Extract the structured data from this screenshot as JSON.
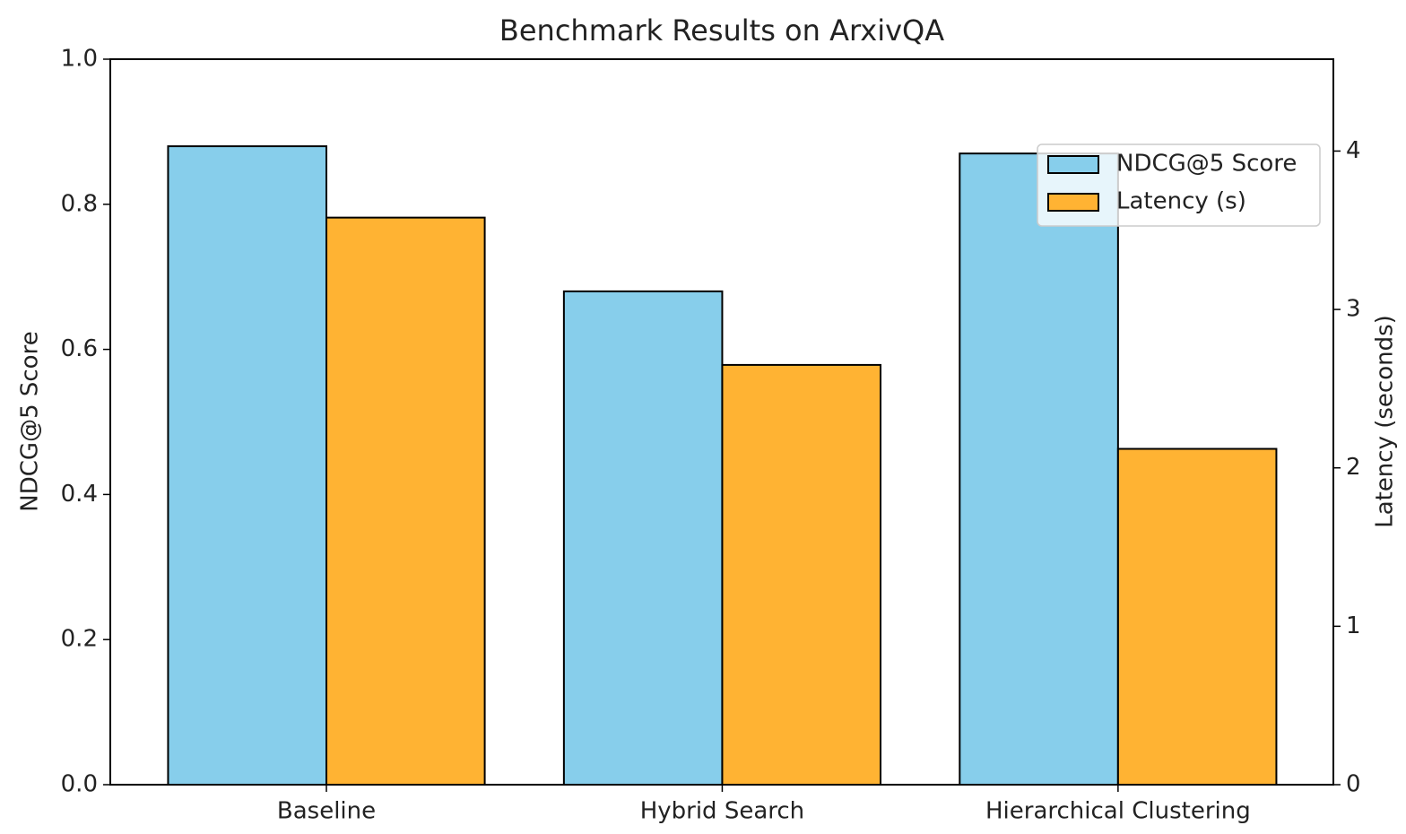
{
  "chart_data": {
    "type": "bar",
    "title": "Benchmark Results on ArxivQA",
    "categories": [
      "Baseline",
      "Hybrid Search",
      "Hierarchical Clustering"
    ],
    "ylabel": "NDCG@5 Score",
    "y2label": "Latency (seconds)",
    "series": [
      {
        "name": "NDCG@5 Score",
        "color": "#87ceeb",
        "values": [
          0.88,
          0.68,
          0.87
        ]
      },
      {
        "name": "Latency (s)",
        "color": "#ffb333",
        "values": [
          3.58,
          2.65,
          2.12
        ],
        "axis": "y2"
      }
    ],
    "ylim": [
      0,
      1.0
    ],
    "yticks": [
      {
        "value": 0,
        "label": "0.0"
      },
      0.2,
      0.4,
      0.6,
      0.8,
      {
        "value": 1,
        "label": "1.0"
      }
    ],
    "y2lim": [
      0,
      4.58
    ],
    "y2ticks": [
      0,
      1,
      2,
      3,
      4
    ],
    "legend": "upper right",
    "grid": false
  }
}
